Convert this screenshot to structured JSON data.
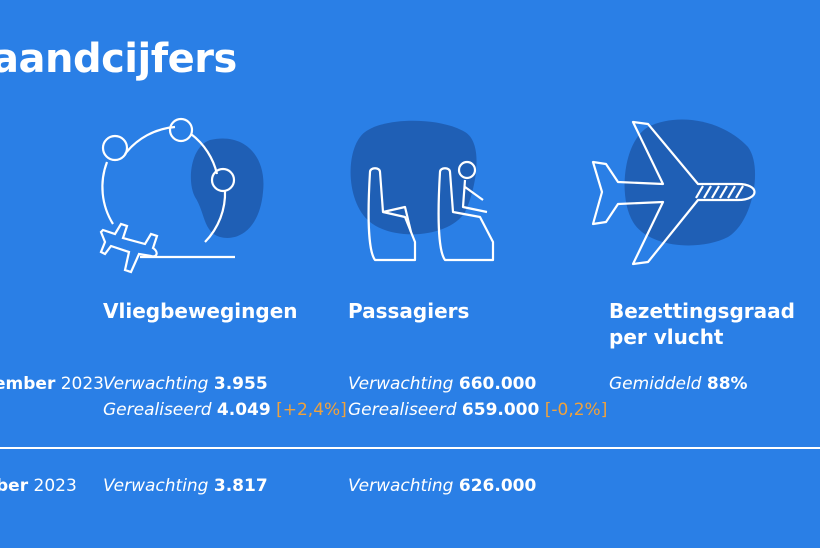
{
  "title": "aandcijfers",
  "categories": {
    "flights": {
      "label": "Vliegbewegingen",
      "icon": "flight-network-icon"
    },
    "passengers": {
      "label": "Passagiers",
      "icon": "seats-icon"
    },
    "occupancy": {
      "label_line1": "Bezettingsgraad",
      "label_line2": "per vlucht",
      "icon": "airplane-icon"
    }
  },
  "period1": {
    "month": "ember",
    "year": "2023",
    "flights": {
      "expected_label": "Verwachting",
      "expected_value": "3.955",
      "realized_label": "Gerealiseerd",
      "realized_value": "4.049",
      "delta": "[+2,4%]"
    },
    "passengers": {
      "expected_label": "Verwachting",
      "expected_value": "660.000",
      "realized_label": "Gerealiseerd",
      "realized_value": "659.000",
      "delta": "[-0,2%]"
    },
    "occupancy": {
      "label": "Gemiddeld",
      "value": "88%"
    }
  },
  "period2": {
    "month": "ber",
    "year": "2023",
    "flights": {
      "expected_label": "Verwachting",
      "expected_value": "3.817"
    },
    "passengers": {
      "expected_label": "Verwachting",
      "expected_value": "626.000"
    }
  },
  "colors": {
    "background": "#2a7fe6",
    "blob": "#1f5fb5",
    "text": "#ffffff",
    "delta": "#f0a23c"
  }
}
